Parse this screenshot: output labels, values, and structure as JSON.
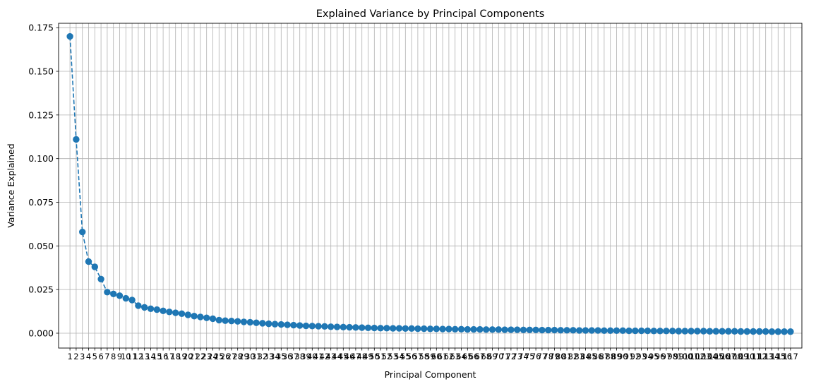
{
  "chart_data": {
    "type": "line",
    "title": "Explained Variance by Principal Components",
    "xlabel": "Principal Component",
    "ylabel": "Variance Explained",
    "grid": true,
    "xlim": [
      -0.83,
      118.83
    ],
    "ylim": [
      -0.0085,
      0.1775
    ],
    "y_ticks": [
      "0.000",
      "0.025",
      "0.050",
      "0.075",
      "0.100",
      "0.125",
      "0.150",
      "0.175"
    ],
    "y_tick_values": [
      0.0,
      0.025,
      0.05,
      0.075,
      0.1,
      0.125,
      0.15,
      0.175
    ],
    "x_ticks": [
      "1",
      "2",
      "3",
      "4",
      "5",
      "6",
      "7",
      "8",
      "9",
      "10",
      "11",
      "12",
      "13",
      "14",
      "15",
      "16",
      "17",
      "18",
      "19",
      "20",
      "21",
      "22",
      "23",
      "24",
      "25",
      "26",
      "27",
      "28",
      "29",
      "30",
      "31",
      "32",
      "33",
      "34",
      "35",
      "36",
      "37",
      "38",
      "39",
      "40",
      "41",
      "42",
      "43",
      "44",
      "45",
      "46",
      "47",
      "48",
      "49",
      "50",
      "51",
      "52",
      "53",
      "54",
      "55",
      "56",
      "57",
      "58",
      "59",
      "60",
      "61",
      "62",
      "63",
      "64",
      "65",
      "66",
      "67",
      "68",
      "69",
      "70",
      "71",
      "72",
      "73",
      "74",
      "75",
      "76",
      "77",
      "78",
      "79",
      "80",
      "81",
      "82",
      "83",
      "84",
      "85",
      "86",
      "87",
      "88",
      "89",
      "90",
      "91",
      "92",
      "93",
      "94",
      "95",
      "96",
      "97",
      "98",
      "99",
      "100",
      "101",
      "102",
      "103",
      "104",
      "105",
      "106",
      "107",
      "108",
      "109",
      "110",
      "111",
      "112",
      "113",
      "114",
      "115",
      "116",
      "117"
    ],
    "series": [
      {
        "color": "#1f77b4",
        "line_style": "dashed",
        "marker": "circle",
        "values": [
          0.17,
          0.111,
          0.058,
          0.041,
          0.038,
          0.031,
          0.0235,
          0.0225,
          0.0215,
          0.02,
          0.019,
          0.0158,
          0.0148,
          0.014,
          0.0135,
          0.0128,
          0.0122,
          0.0117,
          0.0112,
          0.0105,
          0.0098,
          0.0093,
          0.0088,
          0.0083,
          0.0075,
          0.0072,
          0.007,
          0.0068,
          0.0065,
          0.0063,
          0.006,
          0.0057,
          0.0054,
          0.0052,
          0.005,
          0.0048,
          0.0046,
          0.0044,
          0.0042,
          0.0041,
          0.004,
          0.0039,
          0.0037,
          0.0036,
          0.0035,
          0.0034,
          0.0033,
          0.0032,
          0.0031,
          0.003,
          0.0029,
          0.0029,
          0.0028,
          0.0028,
          0.0027,
          0.0027,
          0.0026,
          0.0026,
          0.0025,
          0.0025,
          0.0024,
          0.0024,
          0.0023,
          0.0023,
          0.0022,
          0.0022,
          0.0022,
          0.0021,
          0.0021,
          0.0021,
          0.002,
          0.002,
          0.002,
          0.0019,
          0.0019,
          0.0019,
          0.0018,
          0.0018,
          0.0018,
          0.0017,
          0.0017,
          0.0017,
          0.0016,
          0.0016,
          0.0016,
          0.0016,
          0.0015,
          0.0015,
          0.0015,
          0.0015,
          0.0014,
          0.0014,
          0.0014,
          0.0014,
          0.0013,
          0.0013,
          0.0013,
          0.0013,
          0.0012,
          0.0012,
          0.0012,
          0.0012,
          0.0012,
          0.0011,
          0.0011,
          0.0011,
          0.0011,
          0.0011,
          0.001,
          0.001,
          0.001,
          0.001,
          0.001,
          0.0009,
          0.0009,
          0.0009,
          0.0009
        ]
      }
    ]
  }
}
